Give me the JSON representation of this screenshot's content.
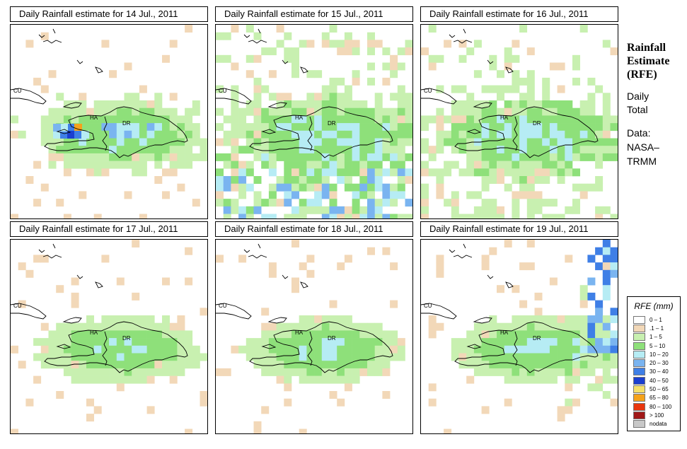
{
  "panels": [
    {
      "title": "Daily Rainfall estimate for  14 Jul., 2011",
      "seed": 14
    },
    {
      "title": "Daily Rainfall estimate for  15 Jul., 2011",
      "seed": 15
    },
    {
      "title": "Daily Rainfall estimate for  16 Jul., 2011",
      "seed": 16
    },
    {
      "title": "Daily Rainfall estimate for  17 Jul., 2011",
      "seed": 17
    },
    {
      "title": "Daily Rainfall estimate for  18 Jul., 2011",
      "seed": 18
    },
    {
      "title": "Daily Rainfall estimate for  19 Jul., 2011",
      "seed": 19
    }
  ],
  "map_labels": {
    "cuba": "CU",
    "haiti": "HA",
    "dominican_republic": "DR"
  },
  "sidebar": {
    "title_line1": "Rainfall",
    "title_line2": "Estimate",
    "title_line3": "(RFE)",
    "period_line1": "Daily",
    "period_line2": "Total",
    "source_line1": "Data:",
    "source_line2": "NASA–",
    "source_line3": "TRMM"
  },
  "legend": {
    "title": "RFE (mm)",
    "items": [
      {
        "label": "0 – 1",
        "color": "#ffffff"
      },
      {
        "label": ".1 – 1",
        "color": "#f2d8b8"
      },
      {
        "label": "1 – 5",
        "color": "#c8f0b0"
      },
      {
        "label": "5 – 10",
        "color": "#8ee07a"
      },
      {
        "label": "10 – 20",
        "color": "#b6ecf4"
      },
      {
        "label": "20 – 30",
        "color": "#7ab4f0"
      },
      {
        "label": "30 – 40",
        "color": "#3f7fe6"
      },
      {
        "label": "40 – 50",
        "color": "#1b3fd0"
      },
      {
        "label": "50 – 65",
        "color": "#f5e06a"
      },
      {
        "label": "65 – 80",
        "color": "#f5a21b"
      },
      {
        "label": "80 – 100",
        "color": "#e8360e"
      },
      {
        "label": "> 100",
        "color": "#a01818"
      },
      {
        "label": "nodata",
        "color": "#c8c8c8"
      }
    ]
  }
}
